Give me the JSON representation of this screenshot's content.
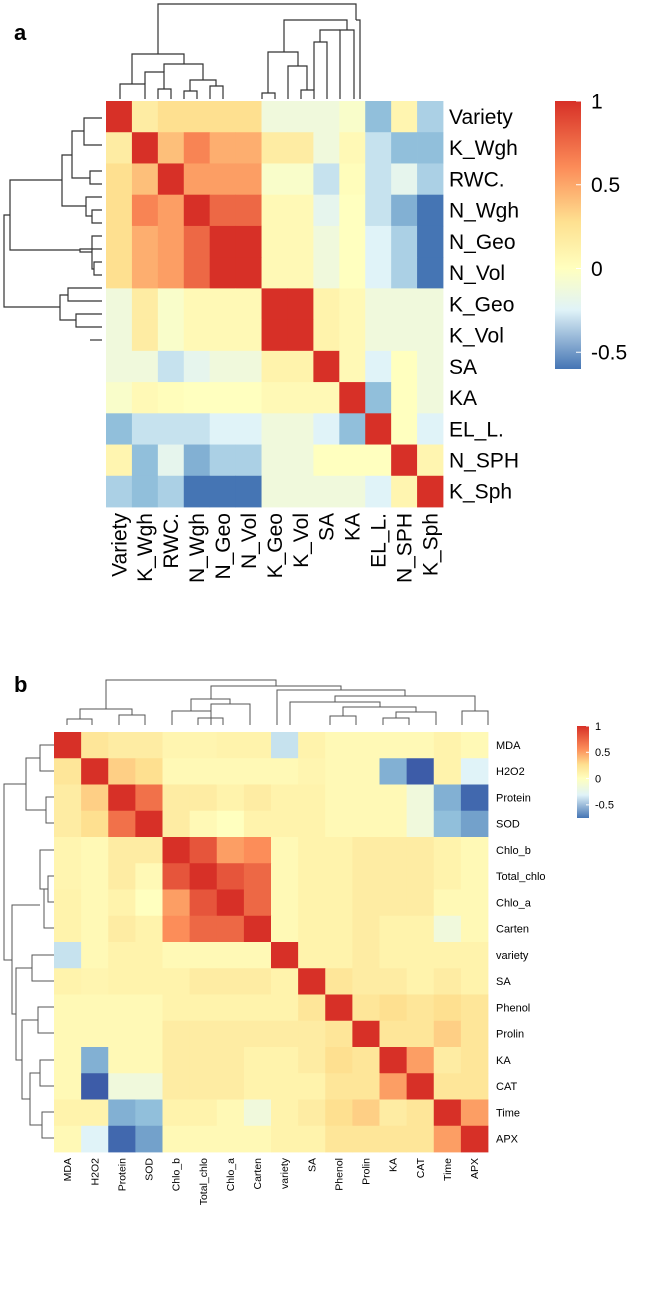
{
  "chart_data": [
    {
      "type": "heatmap",
      "panel_label": "a",
      "title": "",
      "rows": [
        "Variety",
        "K_Wgh",
        "RWC.",
        "N_Wgh",
        "N_Geo",
        "N_Vol",
        "K_Geo",
        "K_Vol",
        "SA",
        "KA",
        "EL_L.",
        "N_SPH",
        "K_Sph"
      ],
      "columns": [
        "Variety",
        "K_Wgh",
        "RWC.",
        "N_Wgh",
        "N_Geo",
        "N_Vol",
        "K_Geo",
        "K_Vol",
        "SA",
        "KA",
        "EL_L.",
        "N_SPH",
        "K_Sph"
      ],
      "values": [
        [
          1.0,
          0.15,
          0.25,
          0.25,
          0.25,
          0.25,
          -0.05,
          -0.05,
          -0.05,
          -0.02,
          -0.25,
          0.08,
          -0.2
        ],
        [
          0.15,
          1.0,
          0.35,
          0.55,
          0.4,
          0.4,
          0.15,
          0.15,
          -0.05,
          0.05,
          -0.15,
          -0.25,
          -0.25
        ],
        [
          0.25,
          0.35,
          1.0,
          0.45,
          0.45,
          0.45,
          -0.02,
          -0.02,
          -0.15,
          0.02,
          -0.15,
          -0.08,
          -0.2
        ],
        [
          0.25,
          0.55,
          0.45,
          1.0,
          0.7,
          0.7,
          0.05,
          0.05,
          -0.08,
          0.0,
          -0.15,
          -0.3,
          -0.5
        ],
        [
          0.25,
          0.4,
          0.45,
          0.7,
          1.0,
          1.0,
          0.05,
          0.05,
          -0.05,
          0.0,
          -0.1,
          -0.2,
          -0.5
        ],
        [
          0.25,
          0.4,
          0.45,
          0.7,
          1.0,
          1.0,
          0.05,
          0.05,
          -0.05,
          0.0,
          -0.1,
          -0.2,
          -0.5
        ],
        [
          -0.05,
          0.15,
          -0.02,
          0.05,
          0.05,
          0.05,
          1.0,
          1.0,
          0.1,
          0.05,
          -0.05,
          -0.05,
          -0.05
        ],
        [
          -0.05,
          0.15,
          -0.02,
          0.05,
          0.05,
          0.05,
          1.0,
          1.0,
          0.1,
          0.05,
          -0.05,
          -0.05,
          -0.05
        ],
        [
          -0.05,
          -0.05,
          -0.15,
          -0.08,
          -0.05,
          -0.05,
          0.1,
          0.1,
          1.0,
          0.05,
          -0.1,
          0.0,
          -0.05
        ],
        [
          -0.02,
          0.05,
          0.02,
          0.0,
          0.0,
          0.0,
          0.05,
          0.05,
          0.05,
          1.0,
          -0.25,
          0.0,
          -0.05
        ],
        [
          -0.25,
          -0.15,
          -0.15,
          -0.15,
          -0.1,
          -0.1,
          -0.05,
          -0.05,
          -0.1,
          -0.25,
          1.0,
          0.0,
          -0.1
        ],
        [
          0.08,
          -0.25,
          -0.08,
          -0.3,
          -0.2,
          -0.2,
          -0.05,
          -0.05,
          0.0,
          0.0,
          0.0,
          1.0,
          0.08
        ],
        [
          -0.2,
          -0.25,
          -0.2,
          -0.5,
          -0.5,
          -0.5,
          -0.05,
          -0.05,
          -0.05,
          -0.05,
          -0.1,
          0.08,
          1.0
        ]
      ],
      "legend": {
        "ticks": [
          "1",
          "0.5",
          "0",
          "-0.5"
        ],
        "tick_values": [
          1,
          0.5,
          0,
          -0.5
        ],
        "range": [
          -0.6,
          1
        ]
      }
    },
    {
      "type": "heatmap",
      "panel_label": "b",
      "title": "",
      "rows": [
        "MDA",
        "H2O2",
        "Protein",
        "SOD",
        "Chlo_b",
        "Total_chlo",
        "Chlo_a",
        "Carten",
        "variety",
        "SA",
        "Phenol",
        "Prolin",
        "KA",
        "CAT",
        "Time",
        "APX"
      ],
      "columns": [
        "MDA",
        "H2O2",
        "Protein",
        "SOD",
        "Chlo_b",
        "Total_chlo",
        "Chlo_a",
        "Carten",
        "variety",
        "SA",
        "Phenol",
        "Prolin",
        "KA",
        "CAT",
        "Time",
        "APX"
      ],
      "values": [
        [
          1.0,
          0.2,
          0.15,
          0.15,
          0.08,
          0.08,
          0.1,
          0.1,
          -0.15,
          0.1,
          0.05,
          0.05,
          0.05,
          0.05,
          0.1,
          0.05
        ],
        [
          0.2,
          1.0,
          0.3,
          0.25,
          0.05,
          0.05,
          0.05,
          0.05,
          0.05,
          0.08,
          0.05,
          0.05,
          -0.3,
          -0.7,
          0.1,
          -0.1
        ],
        [
          0.15,
          0.3,
          1.0,
          0.65,
          0.15,
          0.15,
          0.1,
          0.15,
          0.1,
          0.1,
          0.05,
          0.05,
          0.05,
          -0.05,
          -0.3,
          -0.6
        ],
        [
          0.15,
          0.25,
          0.65,
          1.0,
          0.15,
          0.05,
          0.0,
          0.1,
          0.1,
          0.1,
          0.05,
          0.05,
          0.05,
          -0.05,
          -0.25,
          -0.35
        ],
        [
          0.08,
          0.05,
          0.15,
          0.15,
          1.0,
          0.8,
          0.45,
          0.5,
          0.05,
          0.1,
          0.1,
          0.15,
          0.15,
          0.15,
          0.1,
          0.05
        ],
        [
          0.08,
          0.05,
          0.15,
          0.05,
          0.8,
          1.0,
          0.8,
          0.7,
          0.05,
          0.1,
          0.1,
          0.15,
          0.15,
          0.15,
          0.1,
          0.05
        ],
        [
          0.1,
          0.05,
          0.1,
          0.0,
          0.45,
          0.8,
          1.0,
          0.7,
          0.05,
          0.1,
          0.1,
          0.15,
          0.15,
          0.15,
          0.05,
          0.05
        ],
        [
          0.1,
          0.05,
          0.15,
          0.1,
          0.5,
          0.7,
          0.7,
          1.0,
          0.05,
          0.1,
          0.1,
          0.15,
          0.1,
          0.1,
          -0.05,
          0.05
        ],
        [
          -0.15,
          0.05,
          0.1,
          0.1,
          0.05,
          0.05,
          0.05,
          0.05,
          1.0,
          0.1,
          0.1,
          0.15,
          0.1,
          0.1,
          0.1,
          0.1
        ],
        [
          0.1,
          0.08,
          0.1,
          0.1,
          0.1,
          0.15,
          0.15,
          0.15,
          0.1,
          1.0,
          0.2,
          0.15,
          0.15,
          0.1,
          0.15,
          0.1
        ],
        [
          0.05,
          0.05,
          0.05,
          0.05,
          0.1,
          0.1,
          0.1,
          0.1,
          0.1,
          0.2,
          1.0,
          0.2,
          0.25,
          0.2,
          0.25,
          0.2
        ],
        [
          0.05,
          0.05,
          0.05,
          0.05,
          0.15,
          0.15,
          0.15,
          0.15,
          0.15,
          0.15,
          0.2,
          1.0,
          0.2,
          0.2,
          0.3,
          0.2
        ],
        [
          0.05,
          -0.3,
          0.05,
          0.05,
          0.15,
          0.15,
          0.15,
          0.1,
          0.1,
          0.15,
          0.25,
          0.2,
          1.0,
          0.45,
          0.15,
          0.2
        ],
        [
          0.05,
          -0.7,
          -0.05,
          -0.05,
          0.15,
          0.15,
          0.15,
          0.1,
          0.1,
          0.1,
          0.2,
          0.2,
          0.45,
          1.0,
          0.2,
          0.2
        ],
        [
          0.1,
          0.1,
          -0.3,
          -0.25,
          0.1,
          0.1,
          0.05,
          -0.05,
          0.1,
          0.15,
          0.25,
          0.3,
          0.15,
          0.2,
          1.0,
          0.45
        ],
        [
          0.05,
          -0.1,
          -0.6,
          -0.35,
          0.05,
          0.05,
          0.05,
          0.05,
          0.1,
          0.1,
          0.2,
          0.2,
          0.2,
          0.2,
          0.45,
          1.0
        ]
      ],
      "legend": {
        "ticks": [
          "1",
          "0.5",
          "0",
          "-0.5"
        ],
        "tick_values": [
          1,
          0.5,
          0,
          -0.5
        ],
        "range": [
          -0.75,
          1
        ]
      }
    }
  ]
}
